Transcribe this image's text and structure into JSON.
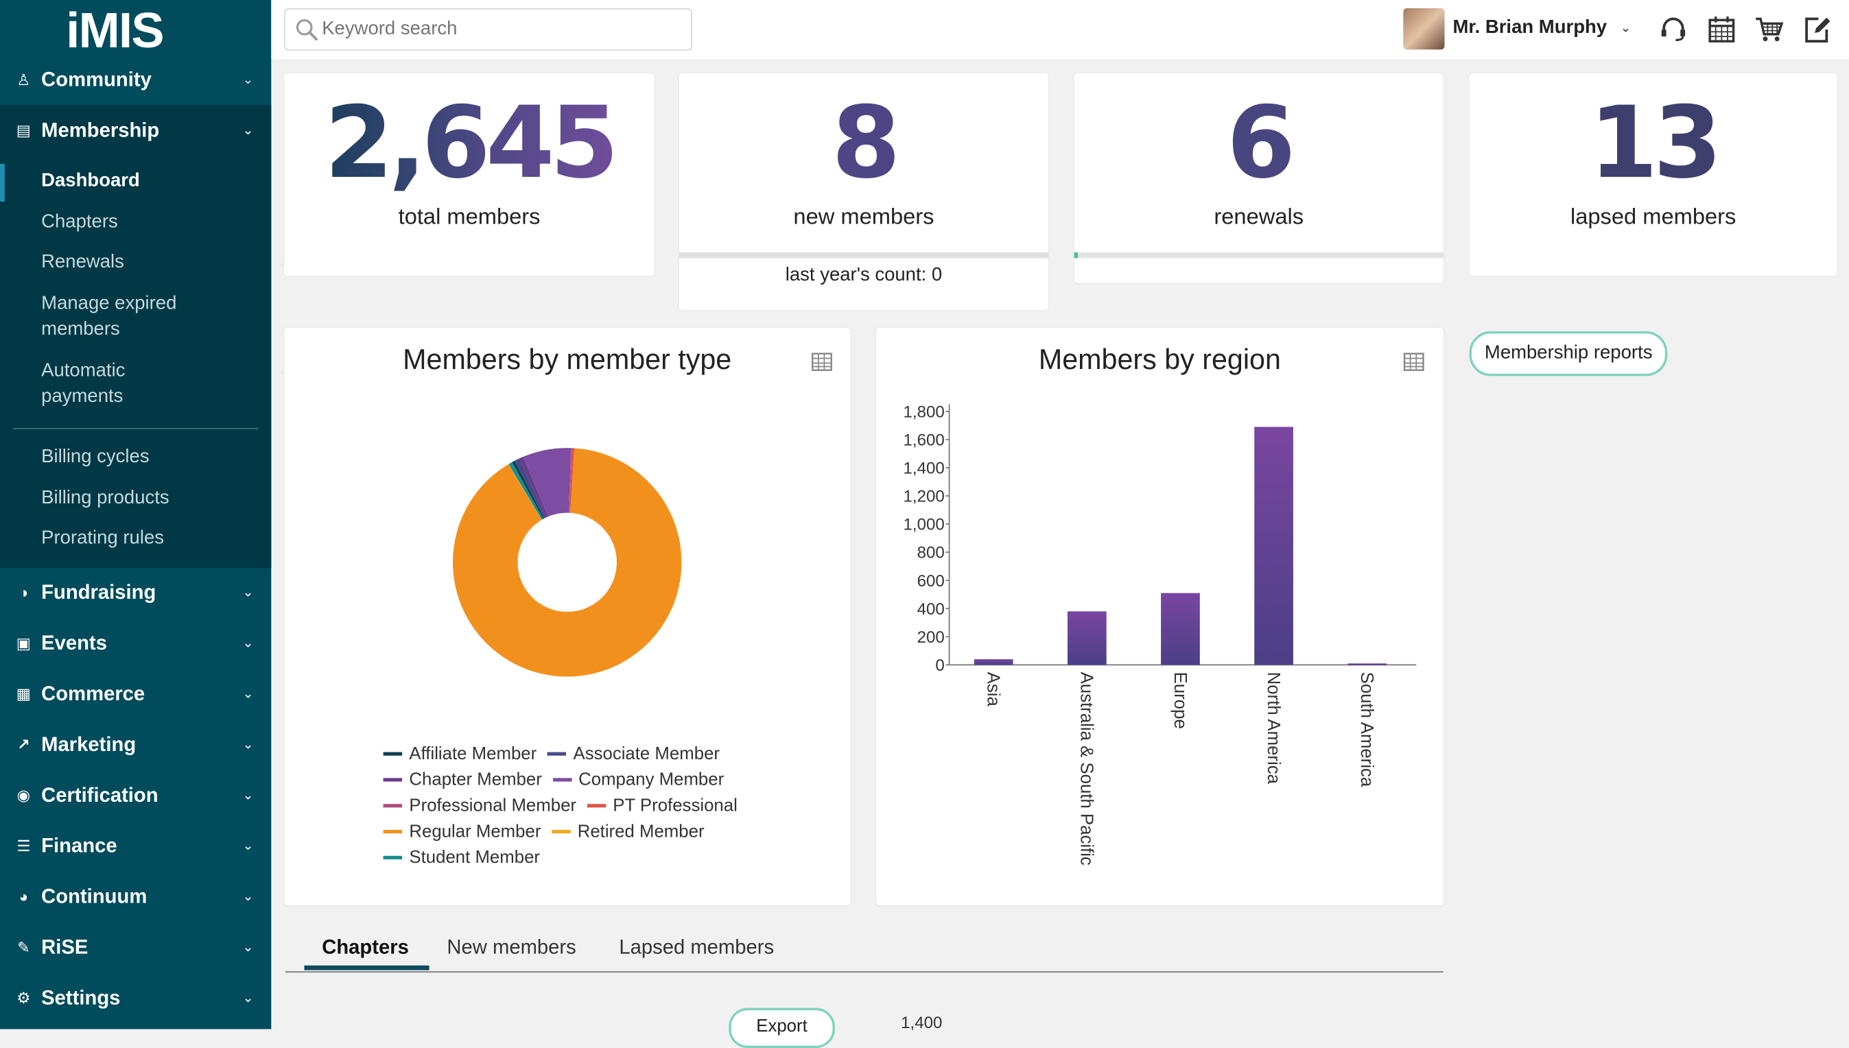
{
  "brand": {
    "logo": "iMIS"
  },
  "nav": {
    "community": "Community",
    "membership": "Membership",
    "membership_sub": {
      "dashboard": "Dashboard",
      "chapters": "Chapters",
      "renewals": "Renewals",
      "manage_expired": "Manage expired members",
      "automatic_payments": "Automatic payments",
      "billing_cycles": "Billing cycles",
      "billing_products": "Billing products",
      "prorating_rules": "Prorating rules"
    },
    "fundraising": "Fundraising",
    "events": "Events",
    "commerce": "Commerce",
    "marketing": "Marketing",
    "certification": "Certification",
    "finance": "Finance",
    "continuum": "Continuum",
    "rise": "RiSE",
    "settings": "Settings"
  },
  "header": {
    "search_placeholder": "Keyword search",
    "user_name": "Mr. Brian Murphy",
    "icons": [
      "headset-icon",
      "calendar-icon",
      "cart-icon",
      "edit-icon"
    ]
  },
  "stats": {
    "total": {
      "value": "2,645",
      "label": "total members"
    },
    "new": {
      "value": "8",
      "label": "new members",
      "footer": "last year's count: 0",
      "progress": 1.0
    },
    "renewals": {
      "value": "6",
      "label": "renewals",
      "progress": 0.01
    },
    "lapsed": {
      "value": "13",
      "label": "lapsed members"
    }
  },
  "reports_button": "Membership reports",
  "tabs": [
    "Chapters",
    "New members",
    "Lapsed members"
  ],
  "export_button": "Export",
  "bottom_chart_tick": "1,400",
  "colors": {
    "sidebar": "#004b5c",
    "sidebar_active_block": "#003846",
    "accent": "#46c1a5",
    "bar": "#6b4496"
  },
  "chart_data": [
    {
      "type": "pie",
      "title": "Members by member type",
      "labels": [
        "Affiliate Member",
        "Associate Member",
        "Chapter Member",
        "Company Member",
        "Professional Member",
        "PT Professional",
        "Regular Member",
        "Retired Member",
        "Student Member"
      ],
      "values": [
        10,
        20,
        15,
        180,
        5,
        8,
        2390,
        2,
        15
      ],
      "colors": [
        "#0f3d52",
        "#4a4a8a",
        "#6a3b8e",
        "#7c4da3",
        "#b14d7d",
        "#e0564a",
        "#f2901e",
        "#f2a91e",
        "#18908f"
      ],
      "legend": "bottom"
    },
    {
      "type": "bar",
      "title": "Members by region",
      "categories": [
        "Asia",
        "Australia & South Pacific",
        "Europe",
        "North America",
        "South America"
      ],
      "values": [
        40,
        380,
        510,
        1690,
        10
      ],
      "ylim": [
        0,
        1800
      ],
      "yticks": [
        "0",
        "200",
        "400",
        "600",
        "800",
        "1,000",
        "1,200",
        "1,400",
        "1,600",
        "1,800"
      ],
      "grid": false
    }
  ]
}
